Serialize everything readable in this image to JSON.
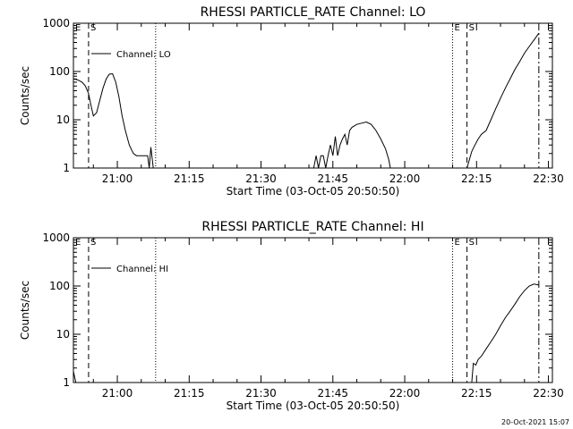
{
  "chart_data": [
    {
      "type": "line",
      "title": "RHESSI PARTICLE_RATE Channel: LO",
      "xlabel": "Start Time (03-Oct-05 20:50:50)",
      "ylabel": "Counts/sec",
      "y_scale": "log",
      "ylim": [
        1,
        1000
      ],
      "xlim": [
        "20:50:50",
        "22:30:50"
      ],
      "x_ticks": [
        "21:00",
        "21:15",
        "21:30",
        "21:45",
        "22:00",
        "22:15",
        "22:30"
      ],
      "y_ticks": [
        "1",
        "10",
        "100",
        "1000"
      ],
      "legend": {
        "position": "top-left",
        "entries": [
          "Channel: LO"
        ]
      },
      "vertical_markers": [
        {
          "time": "20:50:50",
          "style": "dotted",
          "label": "E"
        },
        {
          "time": "20:54:00",
          "style": "dashed",
          "label": "S"
        },
        {
          "time": "21:08:00",
          "style": "dotted",
          "label": ""
        },
        {
          "time": "22:10:00",
          "style": "dotted",
          "label": "E"
        },
        {
          "time": "22:13:00",
          "style": "dashed",
          "label": "S"
        },
        {
          "time": "22:28:00",
          "style": "dash-dot",
          "label": ""
        }
      ],
      "series": [
        {
          "name": "Channel: LO",
          "points": [
            [
              "20:50:50",
              70
            ],
            [
              "20:51:30",
              68
            ],
            [
              "20:52:00",
              65
            ],
            [
              "20:52:40",
              60
            ],
            [
              "20:53:20",
              50
            ],
            [
              "20:54:00",
              35
            ],
            [
              "20:54:30",
              20
            ],
            [
              "20:55:00",
              12
            ],
            [
              "20:55:40",
              14
            ],
            [
              "20:56:20",
              25
            ],
            [
              "20:57:00",
              45
            ],
            [
              "20:57:40",
              70
            ],
            [
              "20:58:20",
              88
            ],
            [
              "20:59:00",
              90
            ],
            [
              "20:59:40",
              60
            ],
            [
              "21:00:20",
              30
            ],
            [
              "21:01:00",
              12
            ],
            [
              "21:01:40",
              6
            ],
            [
              "21:02:30",
              3
            ],
            [
              "21:03:20",
              2
            ],
            [
              "21:04:00",
              1.8
            ],
            [
              "21:04:40",
              1.8
            ],
            [
              "21:05:30",
              1.8
            ],
            [
              "21:06:20",
              1.8
            ],
            [
              "21:06:40",
              1
            ],
            [
              "21:07:00",
              2.7
            ],
            [
              "21:07:30",
              1
            ],
            [
              "21:08:00",
              1
            ],
            [
              "21:41:00",
              1
            ],
            [
              "21:41:30",
              1.8
            ],
            [
              "21:42:00",
              1
            ],
            [
              "21:42:30",
              1.8
            ],
            [
              "21:43:00",
              1.8
            ],
            [
              "21:43:30",
              1
            ],
            [
              "21:44:00",
              1.8
            ],
            [
              "21:44:30",
              3
            ],
            [
              "21:45:00",
              1.8
            ],
            [
              "21:45:30",
              4.5
            ],
            [
              "21:46:00",
              1.8
            ],
            [
              "21:46:30",
              3
            ],
            [
              "21:47:00",
              4
            ],
            [
              "21:47:30",
              5
            ],
            [
              "21:48:00",
              3
            ],
            [
              "21:48:30",
              6
            ],
            [
              "21:49:00",
              7
            ],
            [
              "21:50:00",
              8
            ],
            [
              "21:51:00",
              8.5
            ],
            [
              "21:52:00",
              9
            ],
            [
              "21:53:00",
              8
            ],
            [
              "21:54:00",
              6
            ],
            [
              "21:55:00",
              4
            ],
            [
              "21:56:00",
              2.5
            ],
            [
              "21:56:40",
              1.5
            ],
            [
              "21:57:00",
              1
            ],
            [
              "22:13:00",
              1
            ],
            [
              "22:13:30",
              1.5
            ],
            [
              "22:14:00",
              2.2
            ],
            [
              "22:14:40",
              3
            ],
            [
              "22:15:20",
              4
            ],
            [
              "22:16:00",
              5
            ],
            [
              "22:17:00",
              6
            ],
            [
              "22:18:00",
              10
            ],
            [
              "22:19:00",
              17
            ],
            [
              "22:20:00",
              28
            ],
            [
              "22:21:00",
              45
            ],
            [
              "22:22:00",
              70
            ],
            [
              "22:23:00",
              110
            ],
            [
              "22:24:00",
              160
            ],
            [
              "22:25:00",
              240
            ],
            [
              "22:26:00",
              330
            ],
            [
              "22:27:00",
              450
            ],
            [
              "22:28:00",
              620
            ]
          ]
        }
      ]
    },
    {
      "type": "line",
      "title": "RHESSI PARTICLE_RATE Channel: HI",
      "xlabel": "Start Time (03-Oct-05 20:50:50)",
      "ylabel": "Counts/sec",
      "y_scale": "log",
      "ylim": [
        1,
        1000
      ],
      "xlim": [
        "20:50:50",
        "22:30:50"
      ],
      "x_ticks": [
        "21:00",
        "21:15",
        "21:30",
        "21:45",
        "22:00",
        "22:15",
        "22:30"
      ],
      "y_ticks": [
        "1",
        "10",
        "100",
        "1000"
      ],
      "legend": {
        "position": "top-left",
        "entries": [
          "Channel: HI"
        ]
      },
      "vertical_markers": [
        {
          "time": "20:50:50",
          "style": "dotted",
          "label": "E"
        },
        {
          "time": "20:54:00",
          "style": "dashed",
          "label": "S"
        },
        {
          "time": "21:08:00",
          "style": "dotted",
          "label": ""
        },
        {
          "time": "22:10:00",
          "style": "dotted",
          "label": "E"
        },
        {
          "time": "22:13:00",
          "style": "dashed",
          "label": "S"
        },
        {
          "time": "22:28:00",
          "style": "dash-dot",
          "label": ""
        }
      ],
      "series": [
        {
          "name": "Channel: HI",
          "points": [
            [
              "20:50:50",
              1.7
            ],
            [
              "20:51:20",
              1
            ]
          ]
        },
        {
          "name": "Channel: HI",
          "points": [
            [
              "22:14:00",
              1
            ],
            [
              "22:14:20",
              2.5
            ],
            [
              "22:14:50",
              2.3
            ],
            [
              "22:15:20",
              3
            ],
            [
              "22:16:00",
              3.5
            ],
            [
              "22:17:00",
              5
            ],
            [
              "22:18:00",
              7
            ],
            [
              "22:19:00",
              10
            ],
            [
              "22:20:00",
              15
            ],
            [
              "22:21:00",
              22
            ],
            [
              "22:22:00",
              30
            ],
            [
              "22:23:00",
              42
            ],
            [
              "22:24:00",
              60
            ],
            [
              "22:25:00",
              80
            ],
            [
              "22:26:00",
              100
            ],
            [
              "22:27:00",
              110
            ],
            [
              "22:28:00",
              105
            ]
          ]
        }
      ]
    }
  ],
  "footer": {
    "timestamp": "20-Oct-2021 15:07"
  }
}
